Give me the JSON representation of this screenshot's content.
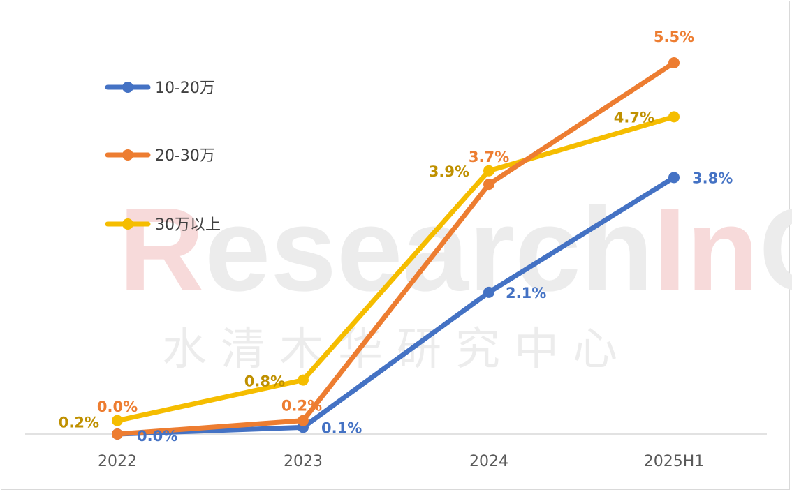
{
  "watermark": {
    "first_letter": "R",
    "segments": [
      "esearch",
      "In",
      "China"
    ],
    "chinese": "水清木华研究中心"
  },
  "chart_data": {
    "type": "line",
    "categories": [
      "2022",
      "2023",
      "2024",
      "2025H1"
    ],
    "title": "",
    "xlabel": "",
    "ylabel": "",
    "ylim": [
      0,
      5.5
    ],
    "grid": false,
    "legend_position": "left",
    "series": [
      {
        "name": "10-20万",
        "color": "#4472C4",
        "values": [
          0.0,
          0.1,
          2.1,
          3.8
        ],
        "labels": [
          "0.0%",
          "0.1%",
          "2.1%",
          "3.8%"
        ],
        "label_color": "#4472C4"
      },
      {
        "name": "20-30万",
        "color": "#ED7D31",
        "values": [
          0.0,
          0.2,
          3.7,
          5.5
        ],
        "labels": [
          "0.0%",
          "0.2%",
          "3.7%",
          "5.5%"
        ],
        "label_color": "#ED7D31"
      },
      {
        "name": "30万以上",
        "color": "#F5BD00",
        "values": [
          0.2,
          0.8,
          3.9,
          4.7
        ],
        "labels": [
          "0.2%",
          "0.8%",
          "3.9%",
          "4.7%"
        ],
        "label_color": "#BF9000"
      }
    ]
  }
}
